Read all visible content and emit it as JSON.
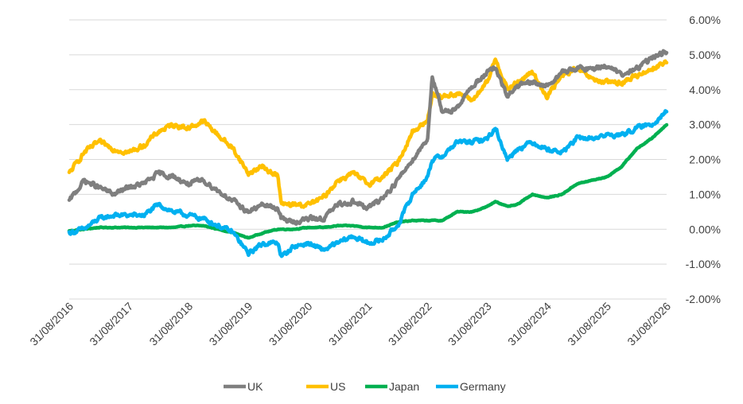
{
  "chart_data": {
    "type": "line",
    "title": "",
    "xlabel": "",
    "ylabel": "",
    "x_tick_labels": [
      "31/08/2016",
      "31/08/2017",
      "31/08/2018",
      "31/08/2019",
      "31/08/2020",
      "31/08/2021",
      "31/08/2022",
      "31/08/2023",
      "31/08/2024",
      "31/08/2025",
      "31/08/2026"
    ],
    "y_tick_labels": [
      "6.00%",
      "5.00%",
      "4.00%",
      "3.00%",
      "2.00%",
      "1.00%",
      "0.00%",
      "-1.00%",
      "-2.00%"
    ],
    "ylim": [
      -2.0,
      6.0
    ],
    "xlim": [
      "2016-08-31",
      "2026-08-31"
    ],
    "grid": true,
    "legend_position": "bottom",
    "colors": {
      "UK": "#7f7f7f",
      "US": "#ffc000",
      "Japan": "#00b050",
      "Germany": "#00b0f0"
    },
    "x": [
      "2016-08-31",
      "2016-11-30",
      "2017-02-28",
      "2017-05-31",
      "2017-08-31",
      "2017-11-30",
      "2018-02-28",
      "2018-05-31",
      "2018-08-31",
      "2018-11-30",
      "2019-02-28",
      "2019-05-31",
      "2019-08-31",
      "2019-11-30",
      "2020-02-29",
      "2020-03-20",
      "2020-05-31",
      "2020-08-31",
      "2020-11-30",
      "2021-02-28",
      "2021-05-31",
      "2021-08-31",
      "2021-11-30",
      "2022-02-28",
      "2022-05-31",
      "2022-08-31",
      "2022-09-28",
      "2022-11-30",
      "2023-02-28",
      "2023-05-31",
      "2023-08-31",
      "2023-10-20",
      "2023-12-31",
      "2024-02-28",
      "2024-05-31",
      "2024-08-31",
      "2024-11-30",
      "2025-02-28",
      "2025-05-31",
      "2025-08-31",
      "2025-11-30",
      "2026-02-28",
      "2026-05-31",
      "2026-08-31"
    ],
    "series": [
      {
        "name": "UK",
        "values": [
          0.8,
          1.4,
          1.2,
          1.0,
          1.2,
          1.3,
          1.6,
          1.5,
          1.3,
          1.4,
          1.1,
          0.8,
          0.5,
          0.7,
          0.6,
          0.3,
          0.2,
          0.3,
          0.3,
          0.7,
          0.8,
          0.6,
          0.9,
          1.4,
          2.0,
          2.6,
          4.4,
          3.3,
          3.5,
          4.1,
          4.5,
          4.6,
          3.8,
          4.1,
          4.2,
          4.1,
          4.5,
          4.6,
          4.6,
          4.7,
          4.4,
          4.6,
          4.9,
          5.1
        ]
      },
      {
        "name": "US",
        "values": [
          1.6,
          2.2,
          2.5,
          2.3,
          2.2,
          2.4,
          2.8,
          3.0,
          2.9,
          3.1,
          2.7,
          2.3,
          1.6,
          1.8,
          1.5,
          0.7,
          0.7,
          0.7,
          0.9,
          1.4,
          1.6,
          1.3,
          1.5,
          1.9,
          2.8,
          3.1,
          3.9,
          3.8,
          3.9,
          3.7,
          4.2,
          4.9,
          4.0,
          4.2,
          4.5,
          3.8,
          4.4,
          4.6,
          4.3,
          4.2,
          4.2,
          4.4,
          4.6,
          4.8
        ]
      },
      {
        "name": "Japan",
        "values": [
          -0.05,
          0.0,
          0.05,
          0.05,
          0.05,
          0.05,
          0.05,
          0.05,
          0.1,
          0.1,
          0.0,
          -0.1,
          -0.25,
          -0.1,
          0.0,
          0.0,
          0.0,
          0.05,
          0.05,
          0.1,
          0.1,
          0.05,
          0.05,
          0.2,
          0.25,
          0.25,
          0.25,
          0.25,
          0.5,
          0.5,
          0.65,
          0.8,
          0.65,
          0.7,
          1.0,
          0.9,
          1.0,
          1.3,
          1.4,
          1.5,
          1.8,
          2.3,
          2.6,
          3.0
        ]
      },
      {
        "name": "Germany",
        "values": [
          -0.1,
          0.0,
          0.3,
          0.4,
          0.4,
          0.4,
          0.7,
          0.5,
          0.4,
          0.3,
          0.1,
          -0.1,
          -0.7,
          -0.4,
          -0.4,
          -0.8,
          -0.5,
          -0.4,
          -0.6,
          -0.4,
          -0.2,
          -0.4,
          -0.3,
          0.1,
          1.0,
          1.5,
          2.0,
          2.1,
          2.5,
          2.5,
          2.6,
          2.9,
          2.0,
          2.3,
          2.5,
          2.3,
          2.2,
          2.6,
          2.6,
          2.7,
          2.7,
          2.9,
          3.0,
          3.4
        ]
      }
    ]
  }
}
